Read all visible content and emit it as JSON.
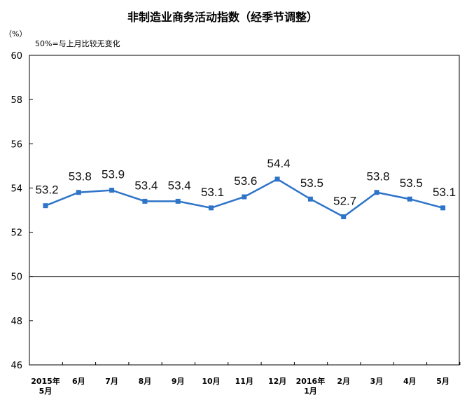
{
  "chart_data": {
    "type": "line",
    "title": "非制造业商务活动指数（经季节调整）",
    "unit_label": "（%）",
    "note": "50%=与上月比较无变化",
    "categories": [
      [
        "2015年",
        "5月"
      ],
      [
        "6月"
      ],
      [
        "7月"
      ],
      [
        "8月"
      ],
      [
        "9月"
      ],
      [
        "10月"
      ],
      [
        "11月"
      ],
      [
        "12月"
      ],
      [
        "2016年",
        "1月"
      ],
      [
        "2月"
      ],
      [
        "3月"
      ],
      [
        "4月"
      ],
      [
        "5月"
      ]
    ],
    "values": [
      53.2,
      53.8,
      53.9,
      53.4,
      53.4,
      53.1,
      53.6,
      54.4,
      53.5,
      52.7,
      53.8,
      53.5,
      53.1
    ],
    "value_labels": [
      "53.2",
      "53.8",
      "53.9",
      "53.4",
      "53.4",
      "53.1",
      "53.6",
      "54.4",
      "53.5",
      "52.7",
      "53.8",
      "53.5",
      "53.1"
    ],
    "ylim": [
      46,
      60
    ],
    "yticks": [
      "46",
      "48",
      "50",
      "52",
      "54",
      "56",
      "58",
      "60"
    ],
    "reference_line": 50,
    "grid": false,
    "series_color": "#2e74c8",
    "axis_color": "#000000"
  }
}
